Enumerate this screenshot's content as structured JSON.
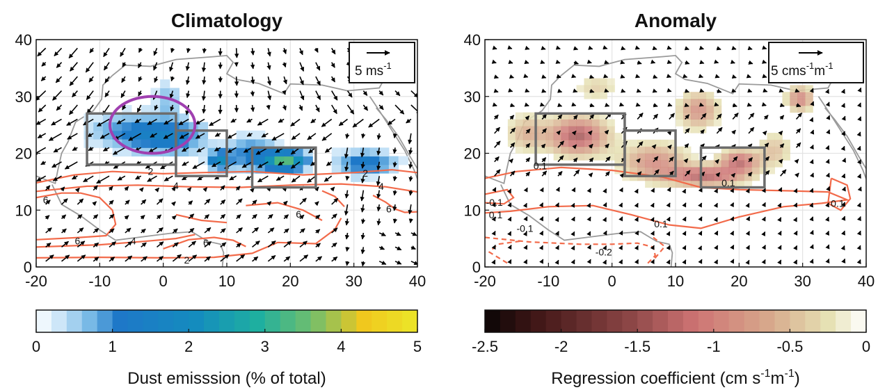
{
  "chart_data": [
    {
      "type": "heatmap",
      "title": "Climatology",
      "xlim": [
        -20,
        40
      ],
      "ylim": [
        0,
        40
      ],
      "x_ticks": [
        "-20",
        "-10",
        "0",
        "10",
        "20",
        "30",
        "40"
      ],
      "y_ticks": [
        "0",
        "10",
        "20",
        "30",
        "40"
      ],
      "grid": true,
      "colorbar": {
        "range": [
          0,
          5
        ],
        "ticks": [
          "0",
          "1",
          "2",
          "3",
          "4",
          "5"
        ],
        "label": "Dust emisssion (% of total)"
      },
      "vector_legend": {
        "text": "5 ms",
        "superscript": "-1"
      },
      "contour_labels": [
        {
          "text": "2",
          "x": -2,
          "y": 16.8
        },
        {
          "text": "4",
          "x": 2,
          "y": 14.3
        },
        {
          "text": "6",
          "x": -18.5,
          "y": 11.8
        },
        {
          "text": "2",
          "x": 31.8,
          "y": 16.5
        },
        {
          "text": "4",
          "x": 34.3,
          "y": 14.2
        },
        {
          "text": "6",
          "x": 35.5,
          "y": 10.2
        },
        {
          "text": "6",
          "x": 21.3,
          "y": 9.3
        },
        {
          "text": "6",
          "x": 6.7,
          "y": 4.3
        },
        {
          "text": "6",
          "x": -13.5,
          "y": 4.6
        },
        {
          "text": "4",
          "x": -4.7,
          "y": 4.6
        },
        {
          "text": "2",
          "x": 3.7,
          "y": 1.2
        }
      ],
      "source_regions": [
        [
          -12,
          18,
          2,
          27
        ],
        [
          2,
          16,
          10,
          24
        ],
        [
          14,
          14,
          24,
          21
        ]
      ],
      "highlight_ellipse": {
        "center": [
          -1.7,
          25
        ],
        "radii": [
          6.7,
          5
        ]
      }
    },
    {
      "type": "heatmap",
      "title": "Anomaly",
      "xlim": [
        -20,
        40
      ],
      "ylim": [
        0,
        40
      ],
      "x_ticks": [
        "-20",
        "-10",
        "0",
        "10",
        "20",
        "30",
        "40"
      ],
      "y_ticks": [
        "0",
        "10",
        "20",
        "30",
        "40"
      ],
      "grid": true,
      "colorbar": {
        "range": [
          -2.5,
          0
        ],
        "ticks": [
          "-2.5",
          "-2",
          "-1.5",
          "-1",
          "-0.5",
          "0"
        ],
        "label": "Regression coefficient (cm s",
        "label_sup1": "-1",
        "label_mid": "m",
        "label_sup2": "-1",
        "label_end": ")"
      },
      "vector_legend": {
        "text": "5 cms",
        "sup1": "-1",
        "mid": "m",
        "sup2": "-1"
      },
      "contour_labels": [
        {
          "text": "0.1",
          "x": -11.3,
          "y": 17.8
        },
        {
          "text": "0.1",
          "x": 18.3,
          "y": 14.8
        },
        {
          "text": "-0.1",
          "x": -18.5,
          "y": 11.4
        },
        {
          "text": "0.1",
          "x": -18.3,
          "y": 9.2
        },
        {
          "text": "-0.1",
          "x": -13.7,
          "y": 6.8
        },
        {
          "text": "0.1",
          "x": 7.7,
          "y": 7.6
        },
        {
          "text": "0.1",
          "x": 35.5,
          "y": 11.2
        },
        {
          "text": "-0.2",
          "x": -1.3,
          "y": 2.6
        }
      ],
      "source_regions": [
        [
          -12,
          18,
          2,
          27
        ],
        [
          2,
          16,
          10,
          24
        ],
        [
          14,
          14,
          24,
          21
        ]
      ]
    }
  ]
}
